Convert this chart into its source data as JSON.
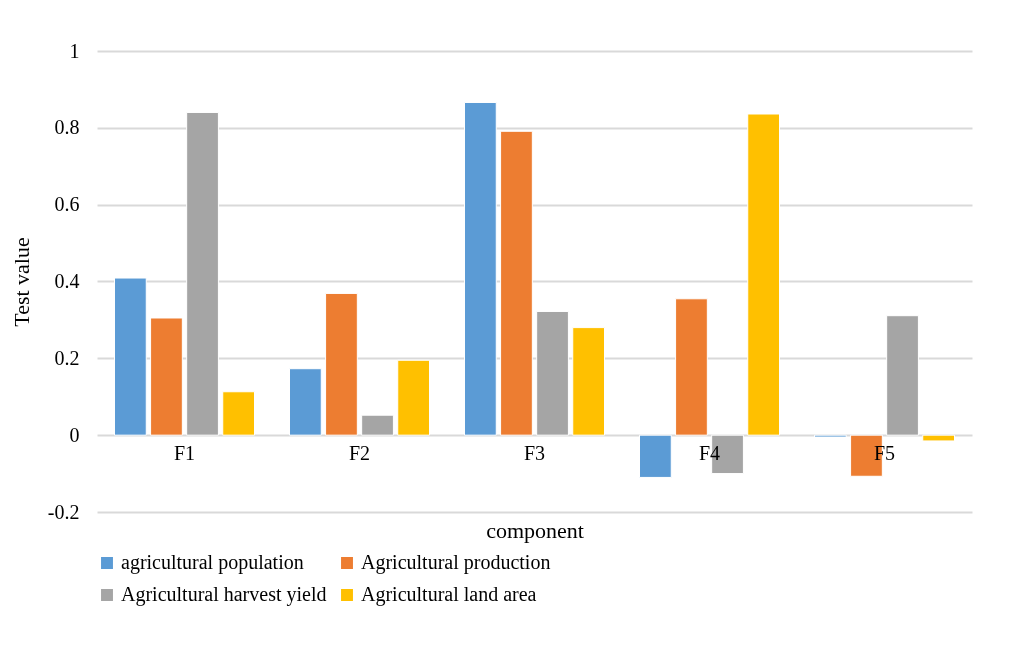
{
  "chart_data": {
    "type": "bar",
    "xlabel": "component",
    "ylabel": "Test value",
    "categories": [
      "F1",
      "F2",
      "F3",
      "F4",
      "F5"
    ],
    "series": [
      {
        "name": "agricultural population",
        "color": "#5b9bd5",
        "values": [
          0.409,
          0.173,
          0.866,
          -0.11,
          -0.005
        ]
      },
      {
        "name": "Agricultural production",
        "color": "#ed7d31",
        "values": [
          0.305,
          0.369,
          0.791,
          0.355,
          -0.107
        ]
      },
      {
        "name": "Agricultural harvest yield",
        "color": "#a5a5a5",
        "values": [
          0.84,
          0.052,
          0.322,
          -0.1,
          0.311
        ]
      },
      {
        "name": "Agricultural land area",
        "color": "#ffc000",
        "values": [
          0.113,
          0.195,
          0.28,
          0.836,
          -0.015
        ]
      }
    ],
    "ylim": [
      -0.2,
      1
    ],
    "yticks": [
      -0.2,
      {
        "value": 0,
        "label": "0"
      },
      0.2,
      0.4,
      0.6,
      0.8,
      {
        "value": 1,
        "label": "1"
      }
    ],
    "grid": "y",
    "legend": "bottom"
  }
}
